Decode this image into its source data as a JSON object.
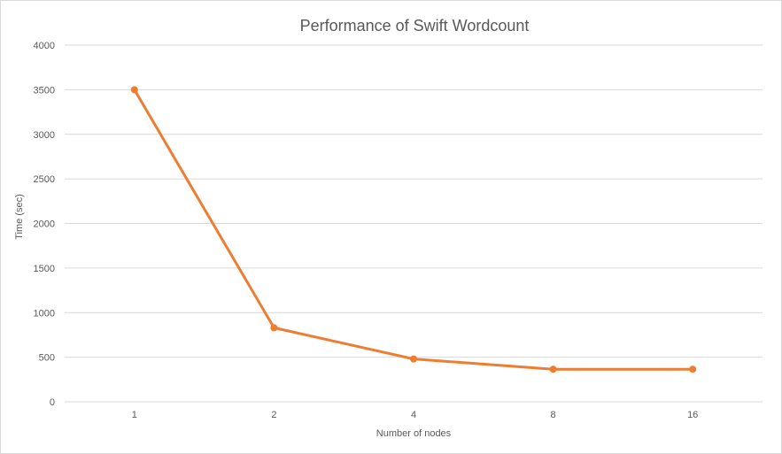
{
  "chart_data": {
    "type": "line",
    "title": "Performance of Swift Wordcount",
    "xlabel": "Number  of nodes",
    "ylabel": "Time (sec)",
    "categories": [
      "1",
      "2",
      "4",
      "8",
      "16"
    ],
    "series": [
      {
        "values": [
          3500,
          830,
          480,
          365,
          365
        ]
      }
    ],
    "ylim": [
      0,
      4000
    ],
    "yticks": [
      0,
      500,
      1000,
      1500,
      2000,
      2500,
      3000,
      3500,
      4000
    ],
    "grid": true,
    "legend": "none"
  },
  "colors": {
    "series": "#ED7D31",
    "grid": "#d9d9d9",
    "text": "#595959"
  }
}
